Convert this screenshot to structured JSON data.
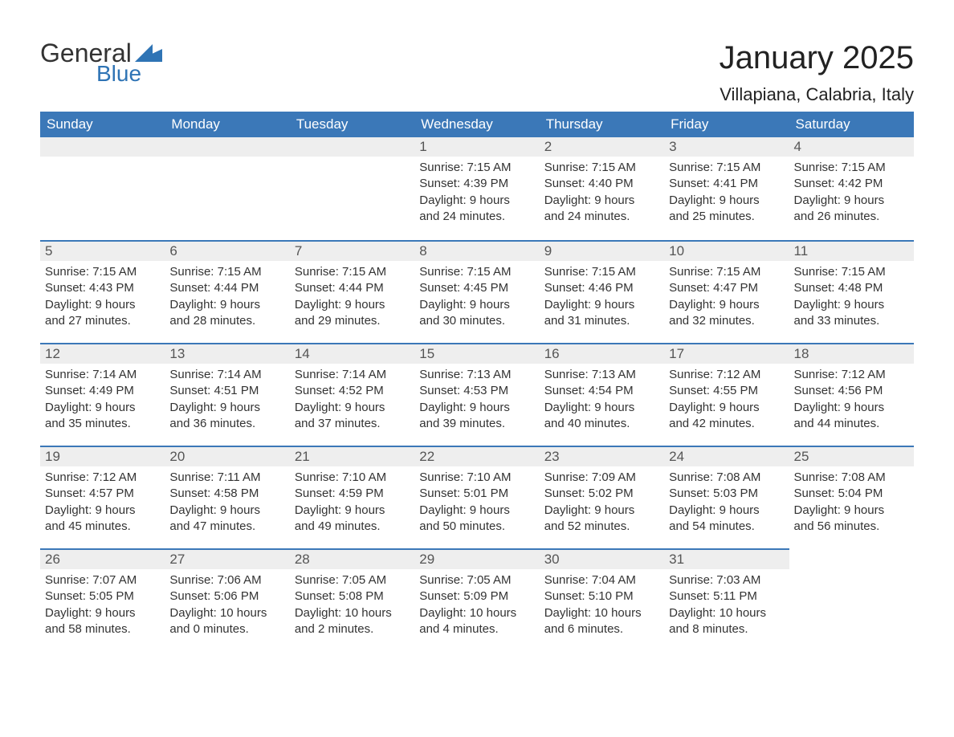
{
  "brand": {
    "part1": "General",
    "part2": "Blue",
    "logo_color": "#2f74b5"
  },
  "title": "January 2025",
  "subtitle": "Villapiana, Calabria, Italy",
  "colors": {
    "header_bg": "#3b78b8",
    "header_text": "#ffffff",
    "daynum_bg": "#eeeeee",
    "border_accent": "#3b78b8",
    "body_text": "#333333"
  },
  "weekdays": [
    "Sunday",
    "Monday",
    "Tuesday",
    "Wednesday",
    "Thursday",
    "Friday",
    "Saturday"
  ],
  "weeks": [
    [
      null,
      null,
      null,
      {
        "day": "1",
        "sunrise": "Sunrise: 7:15 AM",
        "sunset": "Sunset: 4:39 PM",
        "dl1": "Daylight: 9 hours",
        "dl2": "and 24 minutes."
      },
      {
        "day": "2",
        "sunrise": "Sunrise: 7:15 AM",
        "sunset": "Sunset: 4:40 PM",
        "dl1": "Daylight: 9 hours",
        "dl2": "and 24 minutes."
      },
      {
        "day": "3",
        "sunrise": "Sunrise: 7:15 AM",
        "sunset": "Sunset: 4:41 PM",
        "dl1": "Daylight: 9 hours",
        "dl2": "and 25 minutes."
      },
      {
        "day": "4",
        "sunrise": "Sunrise: 7:15 AM",
        "sunset": "Sunset: 4:42 PM",
        "dl1": "Daylight: 9 hours",
        "dl2": "and 26 minutes."
      }
    ],
    [
      {
        "day": "5",
        "sunrise": "Sunrise: 7:15 AM",
        "sunset": "Sunset: 4:43 PM",
        "dl1": "Daylight: 9 hours",
        "dl2": "and 27 minutes."
      },
      {
        "day": "6",
        "sunrise": "Sunrise: 7:15 AM",
        "sunset": "Sunset: 4:44 PM",
        "dl1": "Daylight: 9 hours",
        "dl2": "and 28 minutes."
      },
      {
        "day": "7",
        "sunrise": "Sunrise: 7:15 AM",
        "sunset": "Sunset: 4:44 PM",
        "dl1": "Daylight: 9 hours",
        "dl2": "and 29 minutes."
      },
      {
        "day": "8",
        "sunrise": "Sunrise: 7:15 AM",
        "sunset": "Sunset: 4:45 PM",
        "dl1": "Daylight: 9 hours",
        "dl2": "and 30 minutes."
      },
      {
        "day": "9",
        "sunrise": "Sunrise: 7:15 AM",
        "sunset": "Sunset: 4:46 PM",
        "dl1": "Daylight: 9 hours",
        "dl2": "and 31 minutes."
      },
      {
        "day": "10",
        "sunrise": "Sunrise: 7:15 AM",
        "sunset": "Sunset: 4:47 PM",
        "dl1": "Daylight: 9 hours",
        "dl2": "and 32 minutes."
      },
      {
        "day": "11",
        "sunrise": "Sunrise: 7:15 AM",
        "sunset": "Sunset: 4:48 PM",
        "dl1": "Daylight: 9 hours",
        "dl2": "and 33 minutes."
      }
    ],
    [
      {
        "day": "12",
        "sunrise": "Sunrise: 7:14 AM",
        "sunset": "Sunset: 4:49 PM",
        "dl1": "Daylight: 9 hours",
        "dl2": "and 35 minutes."
      },
      {
        "day": "13",
        "sunrise": "Sunrise: 7:14 AM",
        "sunset": "Sunset: 4:51 PM",
        "dl1": "Daylight: 9 hours",
        "dl2": "and 36 minutes."
      },
      {
        "day": "14",
        "sunrise": "Sunrise: 7:14 AM",
        "sunset": "Sunset: 4:52 PM",
        "dl1": "Daylight: 9 hours",
        "dl2": "and 37 minutes."
      },
      {
        "day": "15",
        "sunrise": "Sunrise: 7:13 AM",
        "sunset": "Sunset: 4:53 PM",
        "dl1": "Daylight: 9 hours",
        "dl2": "and 39 minutes."
      },
      {
        "day": "16",
        "sunrise": "Sunrise: 7:13 AM",
        "sunset": "Sunset: 4:54 PM",
        "dl1": "Daylight: 9 hours",
        "dl2": "and 40 minutes."
      },
      {
        "day": "17",
        "sunrise": "Sunrise: 7:12 AM",
        "sunset": "Sunset: 4:55 PM",
        "dl1": "Daylight: 9 hours",
        "dl2": "and 42 minutes."
      },
      {
        "day": "18",
        "sunrise": "Sunrise: 7:12 AM",
        "sunset": "Sunset: 4:56 PM",
        "dl1": "Daylight: 9 hours",
        "dl2": "and 44 minutes."
      }
    ],
    [
      {
        "day": "19",
        "sunrise": "Sunrise: 7:12 AM",
        "sunset": "Sunset: 4:57 PM",
        "dl1": "Daylight: 9 hours",
        "dl2": "and 45 minutes."
      },
      {
        "day": "20",
        "sunrise": "Sunrise: 7:11 AM",
        "sunset": "Sunset: 4:58 PM",
        "dl1": "Daylight: 9 hours",
        "dl2": "and 47 minutes."
      },
      {
        "day": "21",
        "sunrise": "Sunrise: 7:10 AM",
        "sunset": "Sunset: 4:59 PM",
        "dl1": "Daylight: 9 hours",
        "dl2": "and 49 minutes."
      },
      {
        "day": "22",
        "sunrise": "Sunrise: 7:10 AM",
        "sunset": "Sunset: 5:01 PM",
        "dl1": "Daylight: 9 hours",
        "dl2": "and 50 minutes."
      },
      {
        "day": "23",
        "sunrise": "Sunrise: 7:09 AM",
        "sunset": "Sunset: 5:02 PM",
        "dl1": "Daylight: 9 hours",
        "dl2": "and 52 minutes."
      },
      {
        "day": "24",
        "sunrise": "Sunrise: 7:08 AM",
        "sunset": "Sunset: 5:03 PM",
        "dl1": "Daylight: 9 hours",
        "dl2": "and 54 minutes."
      },
      {
        "day": "25",
        "sunrise": "Sunrise: 7:08 AM",
        "sunset": "Sunset: 5:04 PM",
        "dl1": "Daylight: 9 hours",
        "dl2": "and 56 minutes."
      }
    ],
    [
      {
        "day": "26",
        "sunrise": "Sunrise: 7:07 AM",
        "sunset": "Sunset: 5:05 PM",
        "dl1": "Daylight: 9 hours",
        "dl2": "and 58 minutes."
      },
      {
        "day": "27",
        "sunrise": "Sunrise: 7:06 AM",
        "sunset": "Sunset: 5:06 PM",
        "dl1": "Daylight: 10 hours",
        "dl2": "and 0 minutes."
      },
      {
        "day": "28",
        "sunrise": "Sunrise: 7:05 AM",
        "sunset": "Sunset: 5:08 PM",
        "dl1": "Daylight: 10 hours",
        "dl2": "and 2 minutes."
      },
      {
        "day": "29",
        "sunrise": "Sunrise: 7:05 AM",
        "sunset": "Sunset: 5:09 PM",
        "dl1": "Daylight: 10 hours",
        "dl2": "and 4 minutes."
      },
      {
        "day": "30",
        "sunrise": "Sunrise: 7:04 AM",
        "sunset": "Sunset: 5:10 PM",
        "dl1": "Daylight: 10 hours",
        "dl2": "and 6 minutes."
      },
      {
        "day": "31",
        "sunrise": "Sunrise: 7:03 AM",
        "sunset": "Sunset: 5:11 PM",
        "dl1": "Daylight: 10 hours",
        "dl2": "and 8 minutes."
      },
      null
    ]
  ]
}
